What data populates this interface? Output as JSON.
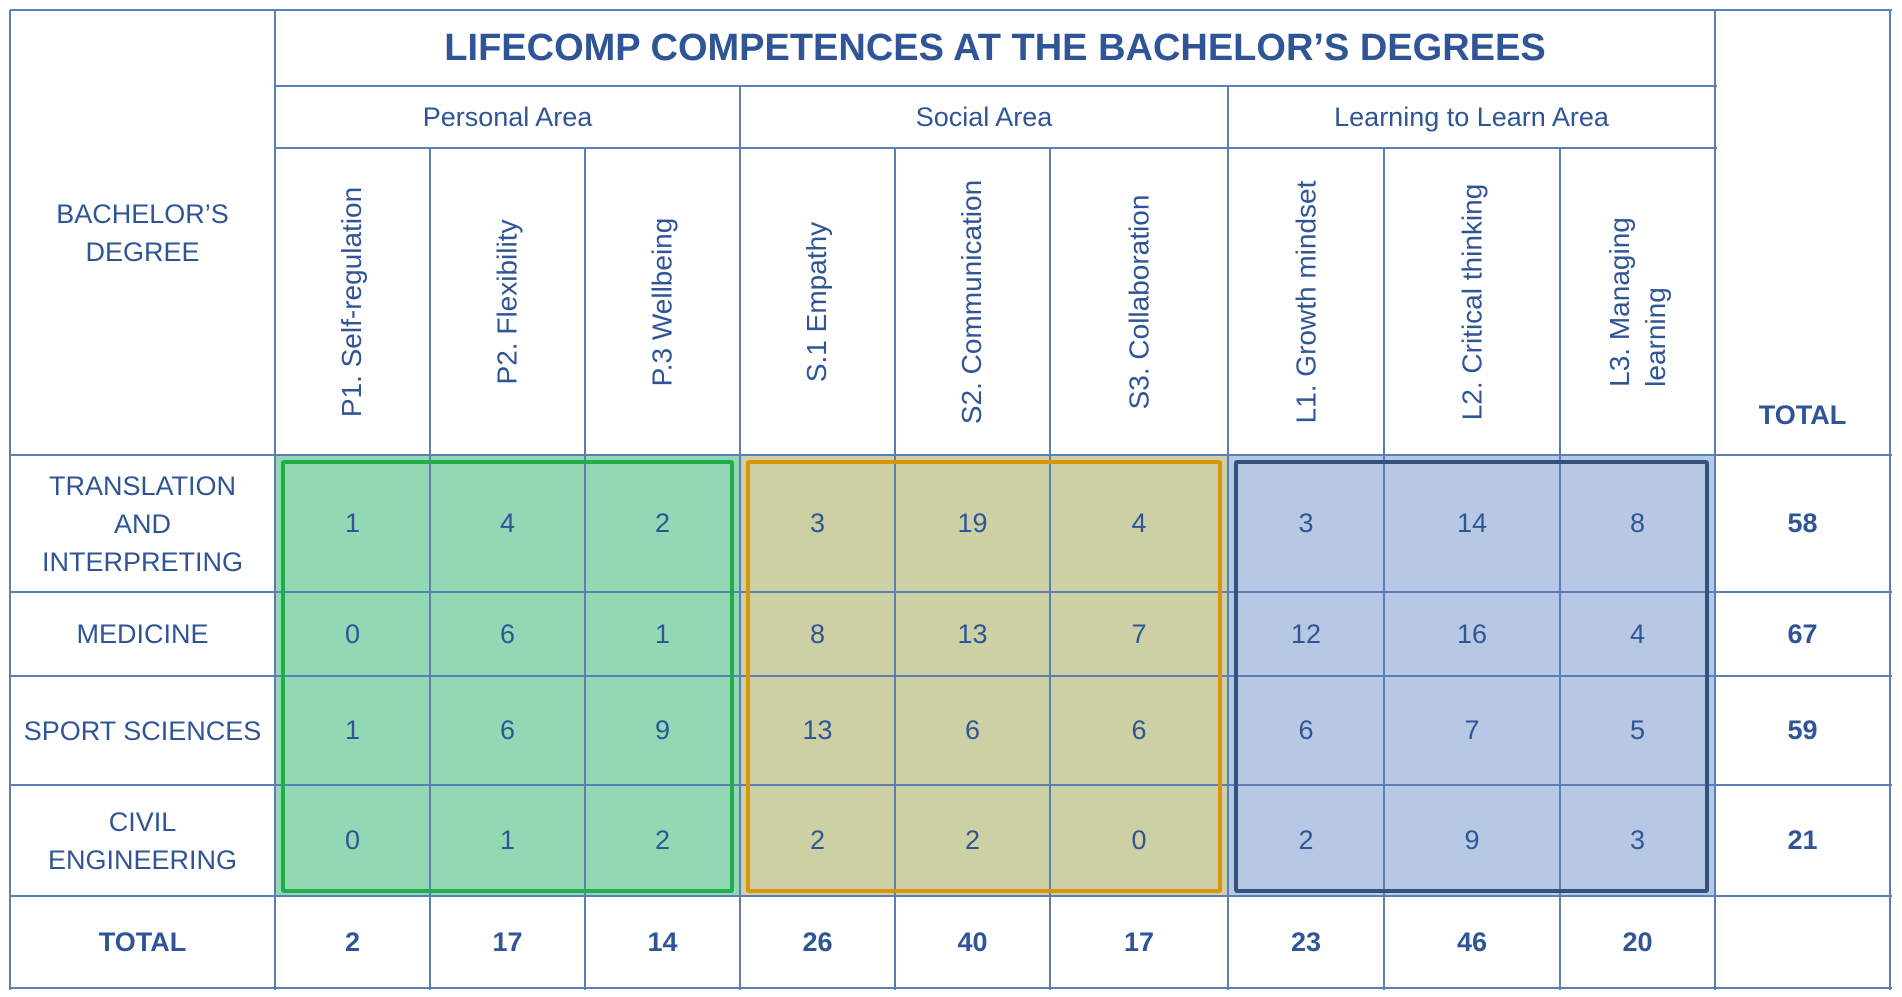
{
  "title": "LIFECOMP COMPETENCES AT THE BACHELOR’S DEGREES",
  "degree_header": [
    "BACHELOR’S",
    "DEGREE"
  ],
  "total_header": "TOTAL",
  "areas": [
    {
      "label": "Personal Area",
      "color": "#92d8b4",
      "border": "#1fae4a"
    },
    {
      "label": "Social Area",
      "color": "#ccd0a4",
      "border": "#d9950a"
    },
    {
      "label": "Learning to Learn Area",
      "color": "#b6c8e4",
      "border": "#34527f"
    }
  ],
  "competences": [
    {
      "label": "P1. Self-regulation"
    },
    {
      "label": "P2. Flexibility"
    },
    {
      "label": "P.3 Wellbeing"
    },
    {
      "label": "S.1 Empathy"
    },
    {
      "label": "S2. Communication"
    },
    {
      "label": "S3. Collaboration"
    },
    {
      "label": "L1. Growth mindset"
    },
    {
      "label": "L2. Critical thinking"
    },
    {
      "label": "L3. Managing learning",
      "lines": [
        "L3. Managing",
        "learning"
      ]
    }
  ],
  "rows": [
    {
      "degree": [
        "TRANSLATION",
        "AND",
        "INTERPRETING"
      ],
      "values": [
        "1",
        "4",
        "2",
        "3",
        "19",
        "4",
        "3",
        "14",
        "8"
      ],
      "total": "58"
    },
    {
      "degree": [
        "MEDICINE"
      ],
      "values": [
        "0",
        "6",
        "1",
        "8",
        "13",
        "7",
        "12",
        "16",
        "4"
      ],
      "total": "67"
    },
    {
      "degree": [
        "SPORT SCIENCES"
      ],
      "values": [
        "1",
        "6",
        "9",
        "13",
        "6",
        "6",
        "6",
        "7",
        "5"
      ],
      "total": "59"
    },
    {
      "degree": [
        "CIVIL",
        "ENGINEERING"
      ],
      "values": [
        "0",
        "1",
        "2",
        "2",
        "2",
        "0",
        "2",
        "9",
        "3"
      ],
      "total": "21"
    }
  ],
  "total_row": {
    "label": "TOTAL",
    "values": [
      "2",
      "17",
      "14",
      "26",
      "40",
      "17",
      "23",
      "46",
      "20"
    ]
  }
}
